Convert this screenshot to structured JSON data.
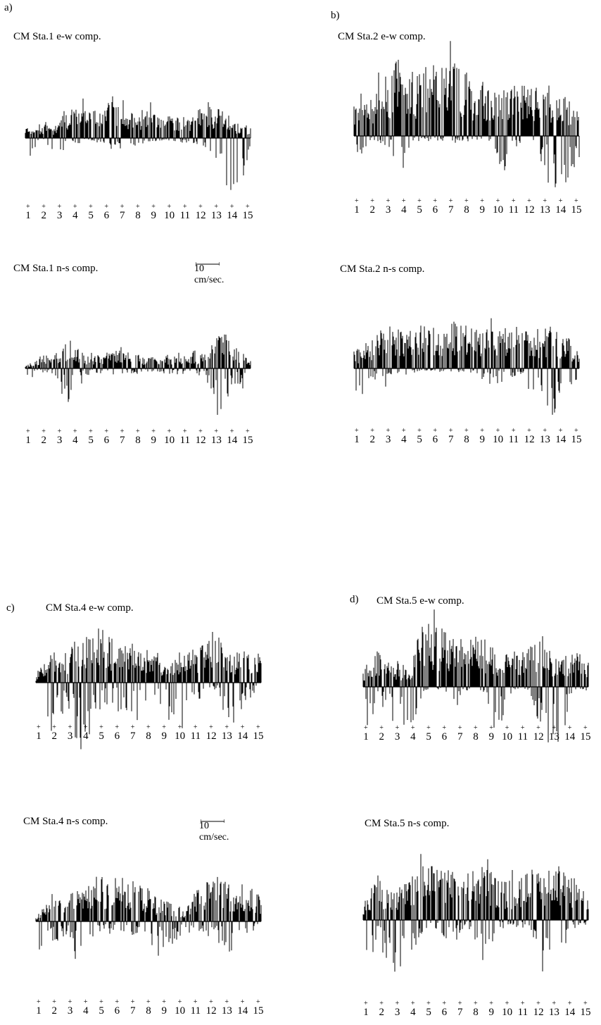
{
  "scale_bar_label": "10 cm/sec.",
  "colors": {
    "trace": "#000000",
    "background": "#ffffff"
  },
  "panels": [
    {
      "letter": "a)",
      "ew_title": "CM Sta.1 e-w comp.",
      "ns_title": "CM Sta.1 n-s comp."
    },
    {
      "letter": "b)",
      "ew_title": "CM Sta.2 e-w comp.",
      "ns_title": "CM Sta.2 n-s comp."
    },
    {
      "letter": "c)",
      "ew_title": "CM Sta.4 e-w comp.",
      "ns_title": "CM Sta.4 n-s comp."
    },
    {
      "letter": "d)",
      "ew_title": "CM Sta.5 e-w comp.",
      "ns_title": "CM Sta.5 n-s comp."
    }
  ],
  "chart_data": [
    {
      "type": "bar",
      "station": "CM Sta.1",
      "component": "e-w",
      "x_ticks": [
        "1",
        "2",
        "3",
        "4",
        "5",
        "6",
        "7",
        "8",
        "9",
        "10",
        "11",
        "12",
        "13",
        "14",
        "15"
      ],
      "envelope": {
        "x": [
          0,
          1,
          2,
          3,
          4,
          5,
          6,
          7,
          8,
          9,
          10,
          11,
          12,
          13,
          14,
          15
        ],
        "positive": [
          0.9,
          1.1,
          1.0,
          3.0,
          2.2,
          2.4,
          3.6,
          2.0,
          2.4,
          1.6,
          1.8,
          1.6,
          3.2,
          2.6,
          1.2,
          1.0
        ],
        "negative": [
          -1.8,
          -0.2,
          -1.4,
          -0.6,
          -0.3,
          -0.4,
          -0.8,
          -1.0,
          -0.3,
          -0.2,
          -0.3,
          -0.6,
          -1.2,
          -2.6,
          -5.4,
          -0.8
        ]
      }
    },
    {
      "type": "bar",
      "station": "CM Sta.1",
      "component": "n-s",
      "x_ticks": [
        "1",
        "2",
        "3",
        "4",
        "5",
        "6",
        "7",
        "8",
        "9",
        "10",
        "11",
        "12",
        "13",
        "14",
        "15"
      ],
      "envelope": {
        "x": [
          0,
          1,
          2,
          3,
          4,
          5,
          6,
          7,
          8,
          9,
          10,
          11,
          12,
          13,
          14,
          15
        ],
        "positive": [
          0.2,
          1.0,
          1.2,
          2.6,
          1.0,
          1.2,
          1.6,
          1.2,
          1.0,
          0.8,
          1.4,
          1.0,
          1.2,
          3.0,
          2.2,
          0.6
        ],
        "negative": [
          -1.6,
          -0.4,
          -0.6,
          -3.0,
          -0.6,
          -0.4,
          -0.6,
          -0.5,
          -0.4,
          -0.4,
          -0.6,
          -0.4,
          -0.8,
          -3.6,
          -1.2,
          -1.8
        ]
      }
    },
    {
      "type": "bar",
      "station": "CM Sta.2",
      "component": "e-w",
      "x_ticks": [
        "1",
        "2",
        "3",
        "4",
        "5",
        "6",
        "7",
        "8",
        "9",
        "10",
        "11",
        "12",
        "13",
        "14",
        "15"
      ],
      "envelope": {
        "x": [
          0,
          1,
          2,
          3,
          4,
          5,
          6,
          7,
          8,
          9,
          10,
          11,
          12,
          13,
          14,
          15
        ],
        "positive": [
          3.2,
          2.8,
          4.6,
          6.4,
          5.0,
          5.8,
          5.4,
          6.0,
          4.6,
          4.6,
          3.6,
          4.4,
          3.8,
          4.0,
          3.4,
          2.2
        ],
        "negative": [
          -3.4,
          -0.4,
          -0.6,
          -2.6,
          -0.4,
          -0.4,
          -0.4,
          -0.6,
          -0.4,
          -0.4,
          -3.0,
          -0.6,
          -0.5,
          -4.2,
          -5.0,
          -1.8
        ]
      }
    },
    {
      "type": "bar",
      "station": "CM Sta.2",
      "component": "n-s",
      "x_ticks": [
        "1",
        "2",
        "3",
        "4",
        "5",
        "6",
        "7",
        "8",
        "9",
        "10",
        "11",
        "12",
        "13",
        "14",
        "15"
      ],
      "envelope": {
        "x": [
          0,
          1,
          2,
          3,
          4,
          5,
          6,
          7,
          8,
          9,
          10,
          11,
          12,
          13,
          14,
          15
        ],
        "positive": [
          1.2,
          2.0,
          3.0,
          3.0,
          3.0,
          3.2,
          3.2,
          3.4,
          3.0,
          2.8,
          3.0,
          3.2,
          2.8,
          3.0,
          2.6,
          1.4
        ],
        "negative": [
          -3.6,
          -0.8,
          -1.4,
          -0.6,
          -0.3,
          -0.2,
          -0.2,
          -0.3,
          -0.3,
          -1.2,
          -1.0,
          -0.4,
          -1.6,
          -3.6,
          -2.4,
          -0.4
        ]
      }
    },
    {
      "type": "bar",
      "station": "CM Sta.4",
      "component": "e-w",
      "x_ticks": [
        "1",
        "2",
        "3",
        "4",
        "5",
        "6",
        "7",
        "8",
        "9",
        "10",
        "11",
        "12",
        "13",
        "14",
        "15"
      ],
      "envelope": {
        "x": [
          0,
          1,
          2,
          3,
          4,
          5,
          6,
          7,
          8,
          9,
          10,
          11,
          12,
          13,
          14,
          15
        ],
        "positive": [
          0.4,
          2.6,
          2.2,
          3.6,
          4.6,
          3.2,
          3.0,
          2.6,
          2.0,
          1.4,
          2.0,
          2.8,
          4.0,
          2.0,
          2.4,
          2.0
        ],
        "negative": [
          -4.4,
          -3.6,
          -2.2,
          -5.0,
          -3.0,
          -1.4,
          -3.6,
          -3.0,
          -1.2,
          -3.6,
          -4.0,
          -1.0,
          -0.6,
          -4.0,
          -1.4,
          -0.4
        ]
      }
    },
    {
      "type": "bar",
      "station": "CM Sta.4",
      "component": "n-s",
      "x_ticks": [
        "1",
        "2",
        "3",
        "4",
        "5",
        "6",
        "7",
        "8",
        "9",
        "10",
        "11",
        "12",
        "13",
        "14",
        "15"
      ],
      "envelope": {
        "x": [
          0,
          1,
          2,
          3,
          4,
          5,
          6,
          7,
          8,
          9,
          10,
          11,
          12,
          13,
          14,
          15
        ],
        "positive": [
          0.4,
          1.8,
          1.6,
          2.2,
          2.6,
          3.4,
          2.8,
          2.6,
          1.6,
          1.2,
          0.8,
          2.6,
          3.0,
          2.4,
          2.6,
          1.6
        ],
        "negative": [
          -2.0,
          -1.4,
          -1.2,
          -2.6,
          -0.6,
          -0.8,
          -1.0,
          -1.0,
          -2.0,
          -2.2,
          -0.8,
          -0.6,
          -1.4,
          -2.6,
          -0.8,
          -0.4
        ]
      }
    },
    {
      "type": "bar",
      "station": "CM Sta.5",
      "component": "e-w",
      "x_ticks": [
        "1",
        "2",
        "3",
        "4",
        "5",
        "6",
        "7",
        "8",
        "9",
        "10",
        "11",
        "12",
        "13",
        "14",
        "15"
      ],
      "envelope": {
        "x": [
          0,
          1,
          2,
          3,
          4,
          5,
          6,
          7,
          8,
          9,
          10,
          11,
          12,
          13,
          14,
          15
        ],
        "positive": [
          1.6,
          2.6,
          2.0,
          1.6,
          5.0,
          4.2,
          4.0,
          3.4,
          3.8,
          2.4,
          2.6,
          3.0,
          4.0,
          1.8,
          2.6,
          2.0
        ],
        "negative": [
          -4.6,
          -1.2,
          -2.0,
          -4.2,
          -0.3,
          -0.2,
          -2.0,
          -0.3,
          -0.6,
          -3.4,
          -0.2,
          -0.2,
          -3.6,
          -5.0,
          -0.4,
          -0.3
        ]
      }
    },
    {
      "type": "bar",
      "station": "CM Sta.5",
      "component": "n-s",
      "x_ticks": [
        "1",
        "2",
        "3",
        "4",
        "5",
        "6",
        "7",
        "8",
        "9",
        "10",
        "11",
        "12",
        "13",
        "14",
        "15"
      ],
      "envelope": {
        "x": [
          0,
          1,
          2,
          3,
          4,
          5,
          6,
          7,
          8,
          9,
          10,
          11,
          12,
          13,
          14,
          15
        ],
        "positive": [
          1.2,
          3.0,
          2.0,
          2.6,
          3.4,
          3.6,
          3.4,
          3.0,
          3.8,
          2.6,
          2.6,
          3.2,
          3.4,
          3.6,
          2.8,
          1.8
        ],
        "negative": [
          -3.4,
          -2.0,
          -2.8,
          -3.4,
          -0.6,
          -0.8,
          -1.6,
          -0.4,
          -3.6,
          -0.6,
          -0.4,
          -0.6,
          -3.6,
          -2.4,
          -0.6,
          -0.4
        ]
      }
    }
  ]
}
